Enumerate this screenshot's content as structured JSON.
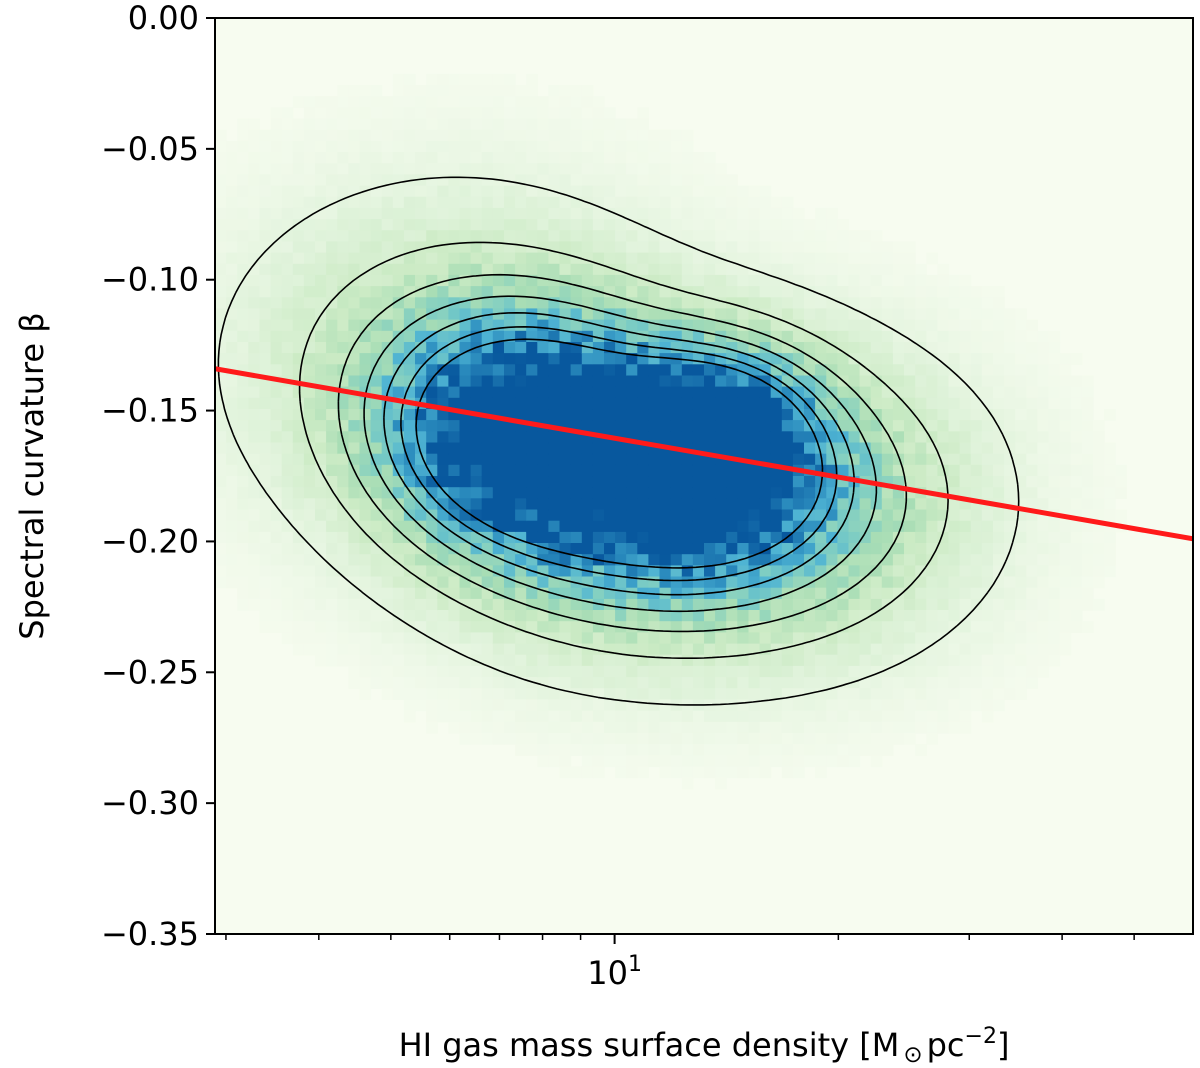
{
  "chart_data": {
    "type": "heatmap",
    "title": "",
    "xlabel": "HI gas mass surface density [M",
    "xlabel_sub": "⊙",
    "xlabel_unit": "pc",
    "xlabel_exp": "−2",
    "xlabel_close": "]",
    "ylabel": "Spectral curvature β",
    "xscale": "log",
    "xlim": [
      2.9,
      60
    ],
    "ylim": [
      -0.35,
      0.0
    ],
    "x_tick_major": {
      "base": "10",
      "exp": "1",
      "value": 10
    },
    "x_minor_ticks": [
      3,
      4,
      5,
      6,
      7,
      8,
      9,
      20,
      30,
      40,
      50
    ],
    "y_ticks": [
      {
        "value": 0.0,
        "label": "0.00"
      },
      {
        "value": -0.05,
        "label": "−0.05"
      },
      {
        "value": -0.1,
        "label": "−0.10"
      },
      {
        "value": -0.15,
        "label": "−0.15"
      },
      {
        "value": -0.2,
        "label": "−0.20"
      },
      {
        "value": -0.25,
        "label": "−0.25"
      },
      {
        "value": -0.3,
        "label": "−0.30"
      },
      {
        "value": -0.35,
        "label": "−0.35"
      }
    ],
    "grid": false,
    "colormap": "GnBu",
    "density_peak": {
      "x": 13,
      "y": -0.165
    },
    "contour_levels": 7,
    "fit_line": {
      "color": "#ff1a1a",
      "points": [
        {
          "x": 2.9,
          "y": -0.134
        },
        {
          "x": 60,
          "y": -0.199
        }
      ]
    }
  }
}
